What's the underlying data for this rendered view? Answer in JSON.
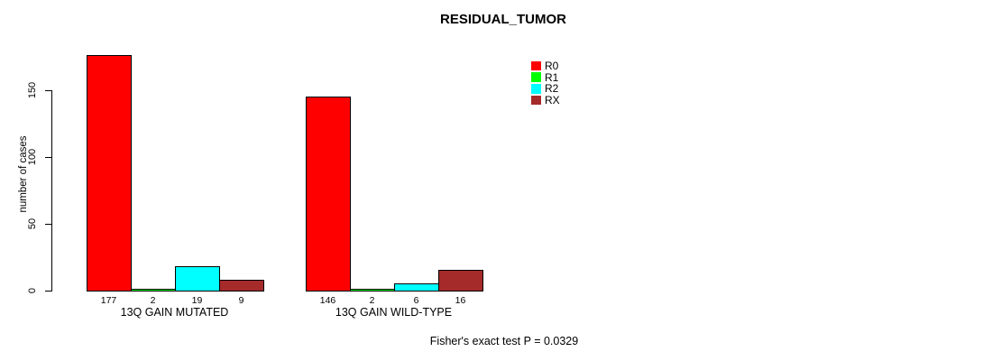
{
  "chart_data": {
    "type": "bar",
    "title": "RESIDUAL_TUMOR",
    "ylabel": "number of cases",
    "ylim": [
      0,
      150
    ],
    "yticks": [
      0,
      50,
      100,
      150
    ],
    "grid": false,
    "legend_position": "top-right",
    "categories": [
      "13Q GAIN MUTATED",
      "13Q GAIN WILD-TYPE"
    ],
    "series": [
      {
        "name": "R0",
        "color": "#FF0000",
        "values": [
          177,
          146
        ]
      },
      {
        "name": "R1",
        "color": "#00FF00",
        "values": [
          2,
          2
        ]
      },
      {
        "name": "R2",
        "color": "#00FFFF",
        "values": [
          19,
          6
        ]
      },
      {
        "name": "RX",
        "color": "#A52A2A",
        "values": [
          9,
          16
        ]
      }
    ],
    "bar_value_labels": [
      [
        177,
        2,
        19,
        9
      ],
      [
        146,
        2,
        6,
        16
      ]
    ],
    "annotation": "Fisher's exact test P = 0.0329"
  }
}
